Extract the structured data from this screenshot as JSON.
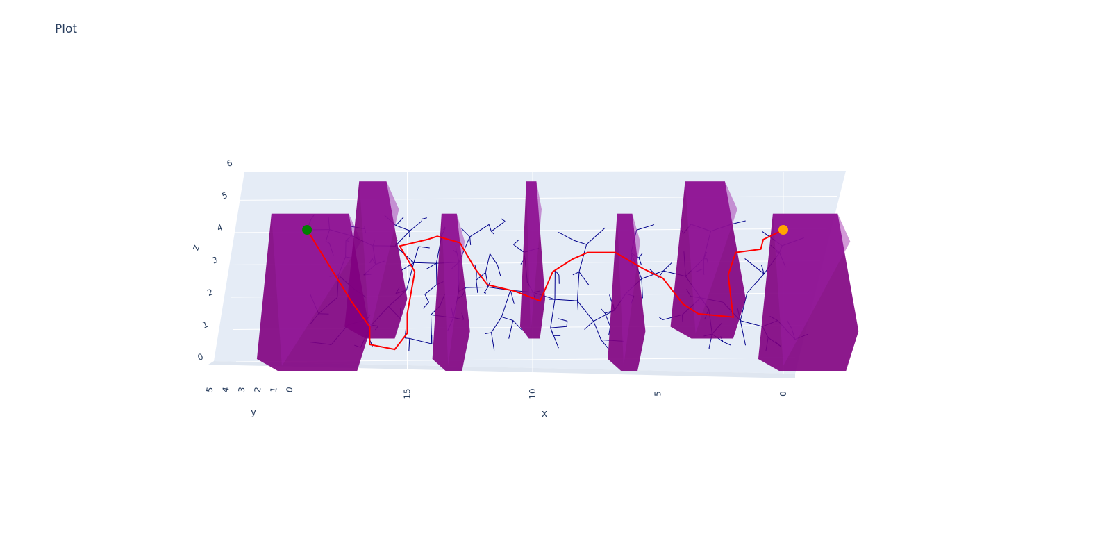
{
  "chart_data": {
    "type": "scatter3d",
    "title": "Plot",
    "axes": {
      "x": {
        "label": "x",
        "range": [
          20,
          -2
        ],
        "ticks": [
          0,
          5,
          10,
          15
        ]
      },
      "y": {
        "label": "y",
        "range": [
          0,
          5
        ],
        "ticks": [
          0,
          1,
          2,
          3,
          4,
          5
        ]
      },
      "z": {
        "label": "z",
        "range": [
          0,
          6
        ],
        "ticks": [
          0,
          1,
          2,
          3,
          4,
          5,
          6
        ]
      }
    },
    "background_color": "#e5ecf6",
    "obstacle_color": "#800080",
    "tree_color": "#00008b",
    "path_color": "#ff0000",
    "start": {
      "x": 19,
      "y": 0,
      "z": 4,
      "color": "#008000"
    },
    "goal": {
      "x": 0,
      "y": 0,
      "z": 4,
      "color": "#ffa500"
    },
    "obstacles": [
      {
        "x": [
          16.5,
          21
        ],
        "z": [
          0,
          4.5
        ]
      },
      {
        "x": [
          15,
          17.5
        ],
        "z": [
          1,
          5.5
        ]
      },
      {
        "x": [
          12.5,
          14
        ],
        "z": [
          0,
          4.5
        ]
      },
      {
        "x": [
          9.5,
          10.5
        ],
        "z": [
          1,
          5.5
        ]
      },
      {
        "x": [
          5.5,
          7
        ],
        "z": [
          0,
          4.5
        ]
      },
      {
        "x": [
          1.5,
          4.5
        ],
        "z": [
          1,
          5.5
        ]
      },
      {
        "x": [
          -3,
          1
        ],
        "z": [
          0,
          4.5
        ]
      }
    ],
    "path": [
      {
        "x": 19,
        "z": 4
      },
      {
        "x": 17.2,
        "z": 1.75
      },
      {
        "x": 16.5,
        "z": 1
      },
      {
        "x": 16.5,
        "z": 0.45
      },
      {
        "x": 15.5,
        "z": 0.3
      },
      {
        "x": 15,
        "z": 0.8
      },
      {
        "x": 15,
        "z": 1.4
      },
      {
        "x": 14.7,
        "z": 2.7
      },
      {
        "x": 15.3,
        "z": 3.5
      },
      {
        "x": 14.2,
        "z": 3.7
      },
      {
        "x": 13.8,
        "z": 3.8
      },
      {
        "x": 12.9,
        "z": 3.6
      },
      {
        "x": 12.3,
        "z": 2.8
      },
      {
        "x": 11.8,
        "z": 2.3
      },
      {
        "x": 10.7,
        "z": 2.1
      },
      {
        "x": 9.7,
        "z": 1.8
      },
      {
        "x": 9.2,
        "z": 2.7
      },
      {
        "x": 8.4,
        "z": 3.1
      },
      {
        "x": 7.8,
        "z": 3.3
      },
      {
        "x": 6.7,
        "z": 3.3
      },
      {
        "x": 5.6,
        "z": 2.8
      },
      {
        "x": 4.8,
        "z": 2.5
      },
      {
        "x": 4,
        "z": 1.7
      },
      {
        "x": 3.4,
        "z": 1.4
      },
      {
        "x": 2,
        "z": 1.3
      },
      {
        "x": 2.2,
        "z": 2.6
      },
      {
        "x": 1.9,
        "z": 3.3
      },
      {
        "x": 0.9,
        "z": 3.4
      },
      {
        "x": 0.8,
        "z": 3.7
      },
      {
        "x": 0,
        "z": 4
      }
    ]
  }
}
